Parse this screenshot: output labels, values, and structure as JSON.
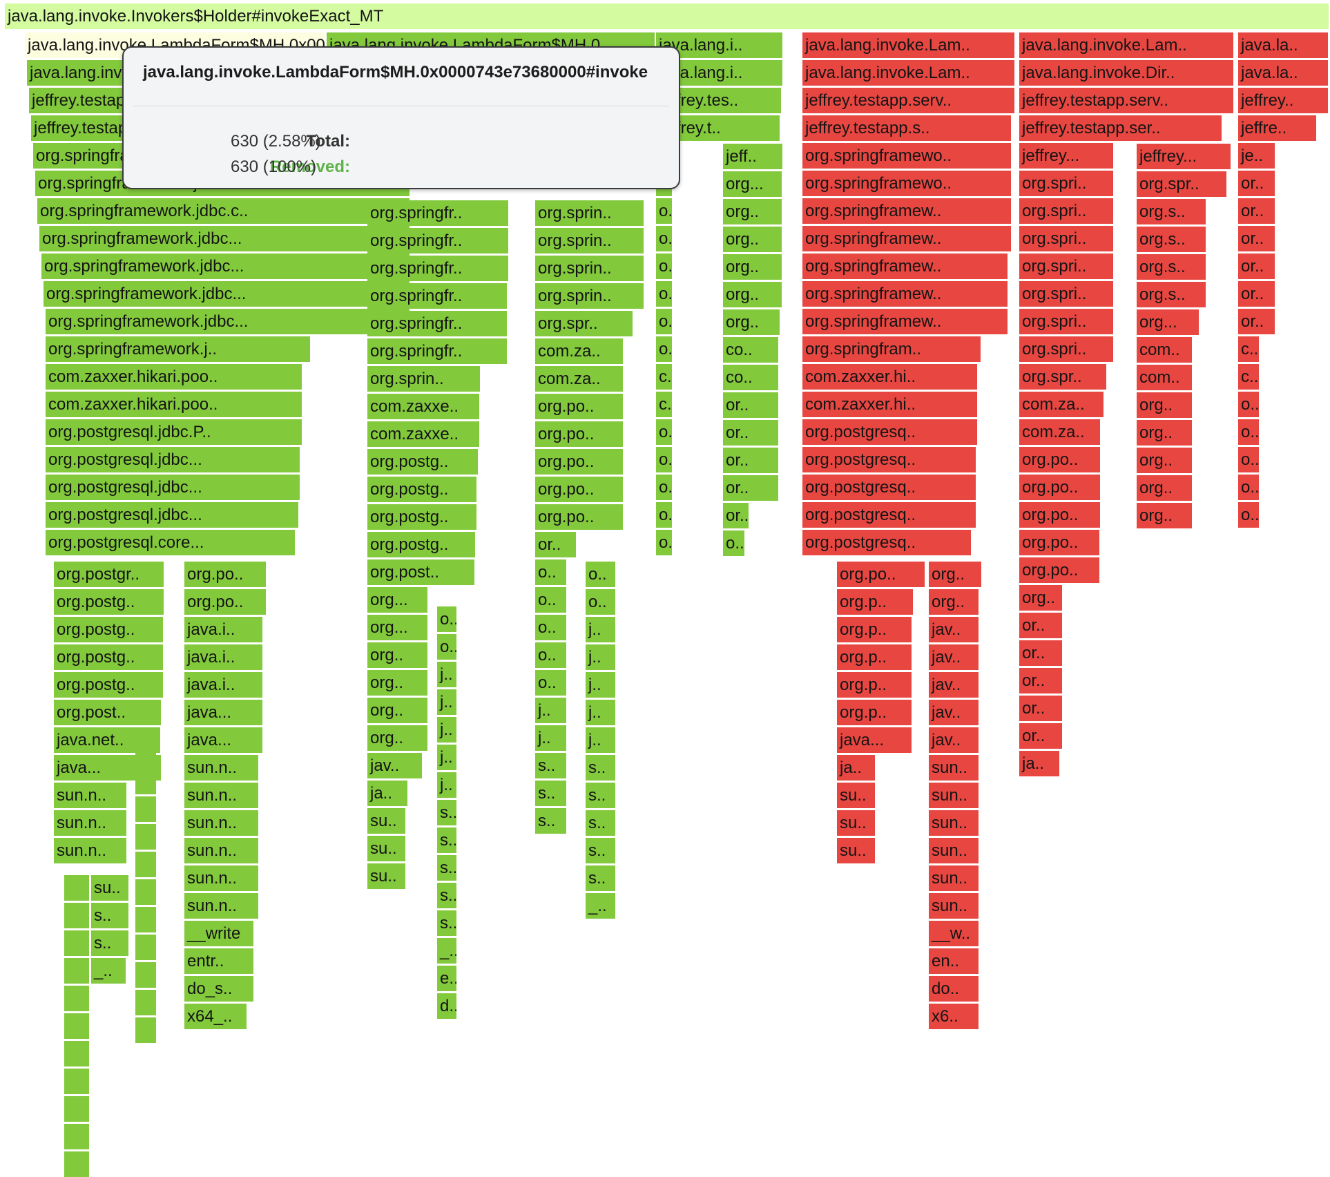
{
  "colors": {
    "root": "#d4fba0",
    "removed": "#82c93c",
    "added": "#e84641",
    "highlight": "#fdfde0",
    "removed_label": "#5fb34a"
  },
  "root": {
    "label": "java.lang.invoke.Invokers$Holder#invokeExact_MT"
  },
  "columns": [
    {
      "c": "g",
      "labels": [
        "java.lang.invoke.LambdaForm$MH.0x0000743e73680000#invoke",
        "java.lang.invoke.LambdaForm$MH.0x0000743e73680000#invoke",
        "jeffrey.testapp.server.PersonRepository",
        "jeffrey.testapp.server.PersonRepository",
        "org.springframework.jdbc.core",
        "org.springframework.jdbc.core",
        "org.springframework.jdbc.c..",
        "org.springframework.jdbc...",
        "org.springframework.jdbc...",
        "org.springframework.jdbc...",
        "org.springframework.jdbc...",
        "org.springframework.j..",
        "com.zaxxer.hikari.poo..",
        "com.zaxxer.hikari.poo..",
        "org.postgresql.jdbc.P..",
        "org.postgresql.jdbc...",
        "org.postgresql.jdbc...",
        "org.postgresql.jdbc...",
        "org.postgresql.core..."
      ]
    },
    {
      "c": "g",
      "labels": [
        "org.postgr..",
        "org.postg..",
        "org.postg..",
        "org.postg..",
        "org.postg..",
        "org.post..",
        "java.net..",
        "java...",
        "sun.n..",
        "sun.n..",
        "sun.n.."
      ]
    },
    {
      "c": "g",
      "labels": [
        "",
        "",
        "",
        "",
        "",
        "",
        "",
        "",
        "",
        "",
        ""
      ]
    },
    {
      "c": "g",
      "labels": [
        "su..",
        "s..",
        "s..",
        "_.."
      ]
    },
    {
      "c": "g",
      "labels": [
        "",
        "",
        "",
        "",
        "",
        "",
        "",
        "",
        "",
        "",
        ""
      ]
    },
    {
      "c": "g",
      "labels": [
        "org.po..",
        "org.po..",
        "java.i..",
        "java.i..",
        "java.i..",
        "java...",
        "java...",
        "sun.n..",
        "sun.n..",
        "sun.n..",
        "sun.n..",
        "sun.n..",
        "sun.n..",
        "__write",
        "entr..",
        "do_s..",
        "x64_.."
      ]
    },
    {
      "c": "g",
      "labels": [
        "java.lang.invoke.LambdaForm$MH.0",
        "",
        "",
        "",
        "",
        "",
        "",
        "",
        "",
        "",
        ""
      ]
    },
    {
      "c": "g",
      "labels": [
        "org.springfr..",
        "org.springfr..",
        "org.springfr..",
        "org.springfr..",
        "org.springfr..",
        "org.springfr..",
        "org.sprin..",
        "com.zaxxe..",
        "com.zaxxe..",
        "org.postg..",
        "org.postg..",
        "org.postg..",
        "org.postg..",
        "org.post..",
        "org...",
        "org...",
        "org..",
        "org..",
        "org..",
        "org..",
        "jav..",
        "ja..",
        "su..",
        "su..",
        "su.."
      ]
    },
    {
      "c": "g",
      "labels": [
        "o..",
        "o..",
        "j..",
        "j..",
        "j..",
        "j..",
        "j..",
        "s..",
        "s..",
        "s..",
        "s..",
        "s..",
        "_..",
        "e..",
        "d.."
      ]
    },
    {
      "c": "g",
      "labels": [
        "org.sprin..",
        "org.sprin..",
        "org.sprin..",
        "org.sprin..",
        "org.spr..",
        "com.za..",
        "com.za..",
        "org.po..",
        "org.po..",
        "org.po..",
        "org.po..",
        "org.po..",
        "or..",
        "o..",
        "o..",
        "o..",
        "o..",
        "o..",
        "j..",
        "j..",
        "s..",
        "s..",
        "s.."
      ]
    },
    {
      "c": "g",
      "labels": [
        "o..",
        "o..",
        "j..",
        "j..",
        "j..",
        "j..",
        "j..",
        "s..",
        "s..",
        "s..",
        "s..",
        "s..",
        "_.."
      ]
    },
    {
      "c": "g",
      "labels": [
        "java.lang.i..",
        "java.lang.i..",
        "jeffrey.tes..",
        "jeffrey.t..",
        "j..",
        "o..",
        "o..",
        "o..",
        "o..",
        "o..",
        "o..",
        "o..",
        "c..",
        "c..",
        "o..",
        "o..",
        "o..",
        "o..",
        "o.."
      ]
    },
    {
      "c": "g",
      "labels": [
        "jeff..",
        "org...",
        "org..",
        "org..",
        "org..",
        "org..",
        "org..",
        "co..",
        "co..",
        "or..",
        "or..",
        "or..",
        "or..",
        "or..",
        "o.."
      ]
    },
    {
      "c": "r",
      "labels": [
        "java.lang.invoke.Lam..",
        "java.lang.invoke.Lam..",
        "jeffrey.testapp.serv..",
        "jeffrey.testapp.s..",
        "org.springframewo..",
        "org.springframewo..",
        "org.springframew..",
        "org.springframew..",
        "org.springframew..",
        "org.springframew..",
        "org.springframew..",
        "org.springfram..",
        "com.zaxxer.hi..",
        "com.zaxxer.hi..",
        "org.postgresq..",
        "org.postgresq..",
        "org.postgresq..",
        "org.postgresq..",
        "org.postgresq.."
      ]
    },
    {
      "c": "r",
      "labels": [
        "org.po..",
        "org.p..",
        "org.p..",
        "org.p..",
        "org.p..",
        "org.p..",
        "java...",
        "ja..",
        "su..",
        "su..",
        "su.."
      ]
    },
    {
      "c": "r",
      "labels": [
        "org..",
        "org..",
        "jav..",
        "jav..",
        "jav..",
        "jav..",
        "jav..",
        "sun..",
        "sun..",
        "sun..",
        "sun..",
        "sun..",
        "sun..",
        "__w..",
        "en..",
        "do..",
        "x6.."
      ]
    },
    {
      "c": "r",
      "labels": [
        "java.lang.invoke.Lam..",
        "java.lang.invoke.Dir..",
        "jeffrey.testapp.serv..",
        "jeffrey.testapp.ser..",
        "jeffrey...",
        "org.spri..",
        "org.spri..",
        "org.spri..",
        "org.spri..",
        "org.spri..",
        "org.spri..",
        "org.spri..",
        "org.spr..",
        "com.za..",
        "com.za..",
        "org.po..",
        "org.po..",
        "org.po..",
        "org.po..",
        "org.po..",
        "org..",
        "or..",
        "or..",
        "or..",
        "or..",
        "or..",
        "ja.."
      ]
    },
    {
      "c": "r",
      "labels": [
        "jeffrey...",
        "org.spr..",
        "org.s..",
        "org.s..",
        "org.s..",
        "org.s..",
        "org...",
        "com..",
        "com..",
        "org..",
        "org..",
        "org..",
        "org..",
        "org.."
      ]
    },
    {
      "c": "r",
      "labels": [
        "java.la..",
        "java.la..",
        "jeffrey..",
        "jeffre..",
        "je..",
        "or..",
        "or..",
        "or..",
        "or..",
        "or..",
        "or..",
        "c..",
        "c..",
        "o..",
        "o..",
        "o..",
        "o..",
        "o.."
      ]
    }
  ],
  "tooltip": {
    "title": "java.lang.invoke.LambdaForm$MH.0x0000743e73680000#invoke",
    "total_label": "Total:",
    "total_value": "630 (2.58%)",
    "removed_label": "Removed:",
    "removed_value": "630 (100%)"
  }
}
